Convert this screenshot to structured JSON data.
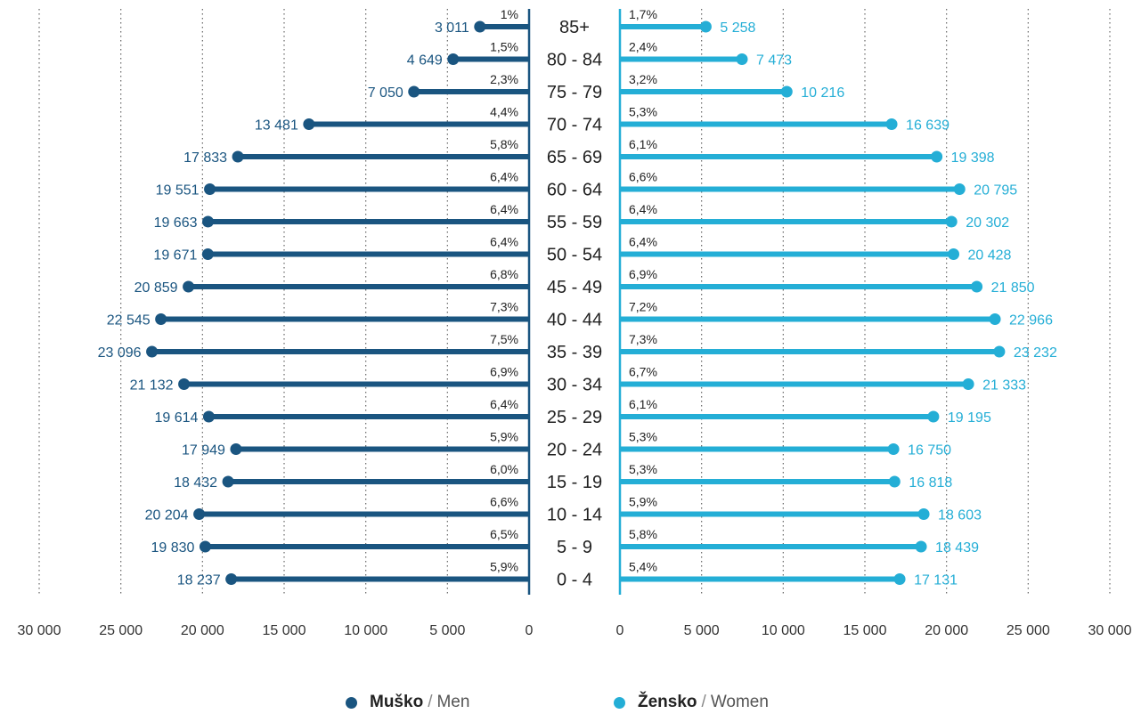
{
  "chart_data": {
    "type": "bar",
    "orientation": "horizontal",
    "categories": [
      "85+",
      "80 - 84",
      "75 - 79",
      "70 - 74",
      "65 - 69",
      "60 - 64",
      "55 - 59",
      "50 - 54",
      "45 - 49",
      "40 - 44",
      "35 - 39",
      "30 - 34",
      "25 - 29",
      "20 - 24",
      "15 - 19",
      "10 - 14",
      "5 - 9",
      "0 - 4"
    ],
    "series": [
      {
        "name": "Muško / Men",
        "side": "left",
        "color": "#1a5580",
        "values": [
          3011,
          4649,
          7050,
          13481,
          17833,
          19551,
          19663,
          19671,
          20859,
          22545,
          23096,
          21132,
          19614,
          17949,
          18432,
          20204,
          19830,
          18237
        ],
        "value_labels": [
          "3 011",
          "4 649",
          "7 050",
          "13 481",
          "17 833",
          "19 551",
          "19 663",
          "19 671",
          "20 859",
          "22 545",
          "23 096",
          "21 132",
          "19 614",
          "17 949",
          "18 432",
          "20 204",
          "19 830",
          "18 237"
        ],
        "percent_labels": [
          "1%",
          "1,5%",
          "2,3%",
          "4,4%",
          "5,8%",
          "6,4%",
          "6,4%",
          "6,4%",
          "6,8%",
          "7,3%",
          "7,5%",
          "6,9%",
          "6,4%",
          "5,9%",
          "6,0%",
          "6,6%",
          "6,5%",
          "5,9%"
        ]
      },
      {
        "name": "Žensko / Women",
        "side": "right",
        "color": "#24aed6",
        "values": [
          5258,
          7473,
          10216,
          16639,
          19398,
          20795,
          20302,
          20428,
          21850,
          22966,
          23232,
          21333,
          19195,
          16750,
          16818,
          18603,
          18439,
          17131
        ],
        "value_labels": [
          "5 258",
          "7 473",
          "10 216",
          "16 639",
          "19 398",
          "20 795",
          "20 302",
          "20 428",
          "21 850",
          "22 966",
          "23 232",
          "21 333",
          "19 195",
          "16 750",
          "16 818",
          "18 603",
          "18 439",
          "17 131"
        ],
        "percent_labels": [
          "1,7%",
          "2,4%",
          "3,2%",
          "5,3%",
          "6,1%",
          "6,6%",
          "6,4%",
          "6,4%",
          "6,9%",
          "7,2%",
          "7,3%",
          "6,7%",
          "6,1%",
          "5,3%",
          "5,3%",
          "5,9%",
          "5,8%",
          "5,4%"
        ]
      }
    ],
    "xlim": [
      0,
      30000
    ],
    "ticks": [
      0,
      5000,
      10000,
      15000,
      20000,
      25000,
      30000
    ],
    "tick_labels": [
      "0",
      "5 000",
      "10 000",
      "15 000",
      "20 000",
      "25 000",
      "30 000"
    ],
    "grid": true,
    "grid_style": "dotted vertical",
    "legend_position": "bottom-center"
  },
  "legend": {
    "men_bold": "Muško",
    "men_en": "Men",
    "women_bold": "Žensko",
    "women_en": "Women",
    "separator": "/"
  }
}
